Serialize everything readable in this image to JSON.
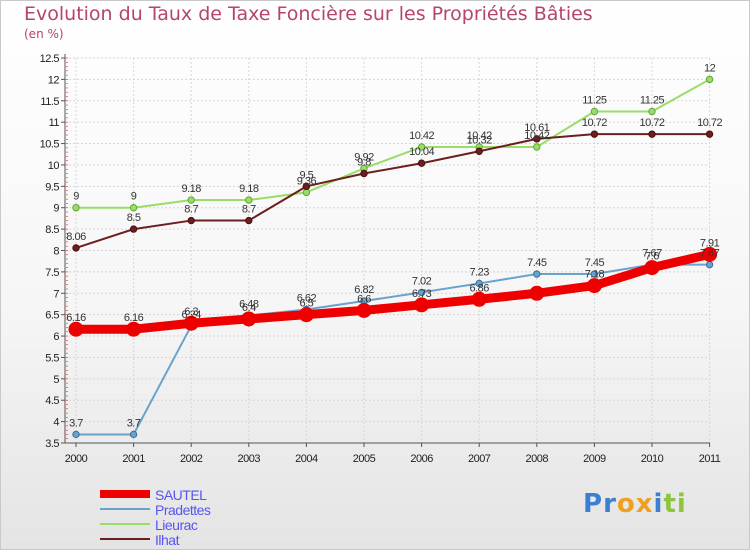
{
  "chart_data": {
    "type": "line",
    "title": "Evolution du Taux de Taxe Foncière sur les Propriétés Bâties",
    "subtitle": "(en %)",
    "xlabel": "",
    "ylabel": "",
    "categories": [
      "2000",
      "2001",
      "2002",
      "2003",
      "2004",
      "2005",
      "2006",
      "2007",
      "2008",
      "2009",
      "2010",
      "2011"
    ],
    "ylim": [
      3.5,
      12.5
    ],
    "yticks": [
      "3.5",
      "4",
      "4.5",
      "5",
      "5.5",
      "6",
      "6.5",
      "7",
      "7.5",
      "8",
      "8.5",
      "9",
      "9.5",
      "10",
      "10.5",
      "11",
      "11.5",
      "12",
      "12.5"
    ],
    "series": [
      {
        "name": "SAUTEL",
        "color": "#ee0000",
        "values": [
          6.16,
          6.16,
          6.3,
          6.4,
          6.5,
          6.6,
          6.73,
          6.86,
          7.0,
          7.18,
          7.6,
          7.91
        ],
        "labels": [
          "6.16",
          "6.16",
          "6.3",
          "6.4",
          "6.5",
          "6.6",
          "6.73",
          "6.86",
          "",
          "7.18",
          "7.6",
          "7.91"
        ]
      },
      {
        "name": "Pradettes",
        "color": "#6aa2cc",
        "values": [
          3.7,
          3.7,
          6.24,
          6.48,
          6.62,
          6.82,
          7.02,
          7.23,
          7.45,
          7.45,
          7.67,
          7.67
        ],
        "labels": [
          "3.7",
          "3.7",
          "6.24",
          "6.48",
          "6.62",
          "6.82",
          "7.02",
          "7.23",
          "7.45",
          "7.45",
          "7.67",
          "7.67"
        ]
      },
      {
        "name": "Lieurac",
        "color": "#99dd66",
        "values": [
          9,
          9,
          9.18,
          9.18,
          9.36,
          9.92,
          10.42,
          10.42,
          10.42,
          11.25,
          11.25,
          12
        ],
        "labels": [
          "9",
          "9",
          "9.18",
          "9.18",
          "9.36",
          "9.92",
          "10.42",
          "10.42",
          "10.42",
          "11.25",
          "11.25",
          "12"
        ]
      },
      {
        "name": "Ilhat",
        "color": "#6b1f1f",
        "values": [
          8.06,
          8.5,
          8.7,
          8.7,
          9.5,
          9.8,
          10.04,
          10.32,
          10.61,
          10.72,
          10.72,
          10.72
        ],
        "labels": [
          "8.06",
          "8.5",
          "8.7",
          "8.7",
          "9.5",
          "9.8",
          "10.04",
          "10.32",
          "10.61",
          "10.72",
          "10.72",
          "10.72"
        ]
      }
    ],
    "legend_position": "bottom-left"
  },
  "colors": {
    "title": "#b5446e",
    "legend_text": "#5555ee",
    "axis": "#555555",
    "tick_label": "#222222",
    "data_label": "#333333"
  },
  "logo": {
    "letters": [
      "P",
      "r",
      "o",
      "x",
      "i",
      "t",
      "i"
    ],
    "colors": [
      "#3a7fd0",
      "#3a7fd0",
      "#f0a020",
      "#f0a020",
      "#3a7fd0",
      "#8cc63f",
      "#8cc63f"
    ]
  }
}
